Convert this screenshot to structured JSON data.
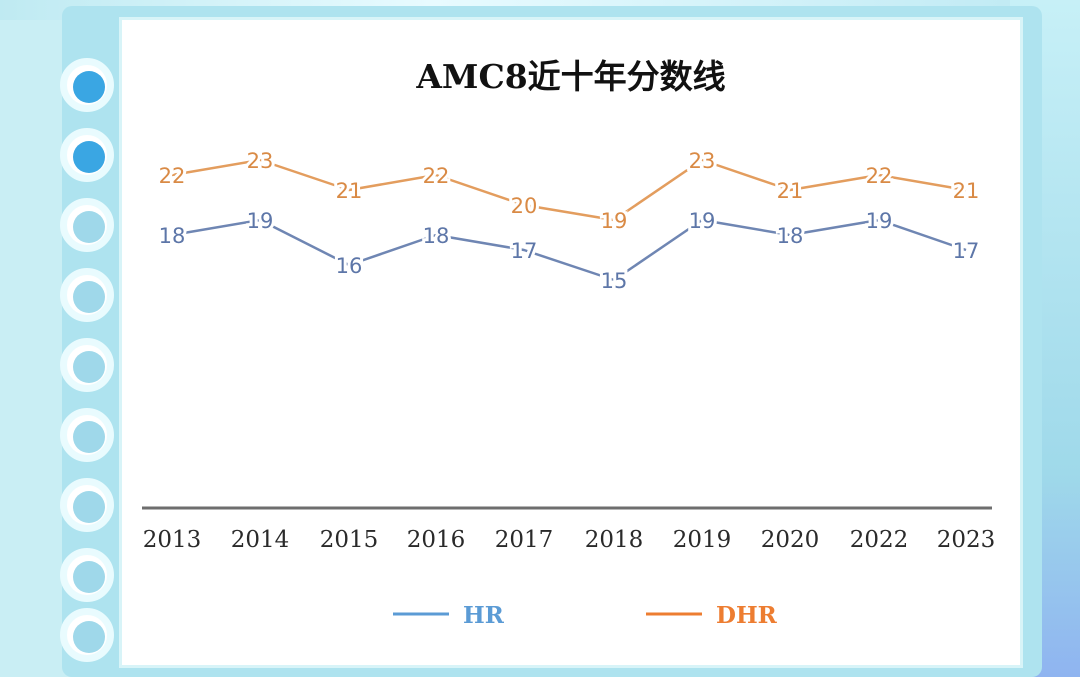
{
  "chart_data": {
    "type": "line",
    "title": "AMC8近十年分数线",
    "categories": [
      "2013",
      "2014",
      "2015",
      "2016",
      "2017",
      "2018",
      "2019",
      "2020",
      "2022",
      "2023"
    ],
    "series": [
      {
        "name": "HR",
        "color": "#6f86b3",
        "label_color": "#5d76a8",
        "legend_color": "#5b9bd5",
        "values": [
          18,
          19,
          16,
          18,
          17,
          15,
          19,
          18,
          19,
          17
        ]
      },
      {
        "name": "DHR",
        "color": "#e39d5e",
        "label_color": "#d98a45",
        "legend_color": "#ed7d31",
        "values": [
          22,
          23,
          21,
          22,
          20,
          19,
          23,
          21,
          22,
          21
        ]
      }
    ],
    "xlabel": "",
    "ylabel": "",
    "ylim": [
      0,
      26
    ],
    "grid": false,
    "legend_position": "bottom"
  }
}
